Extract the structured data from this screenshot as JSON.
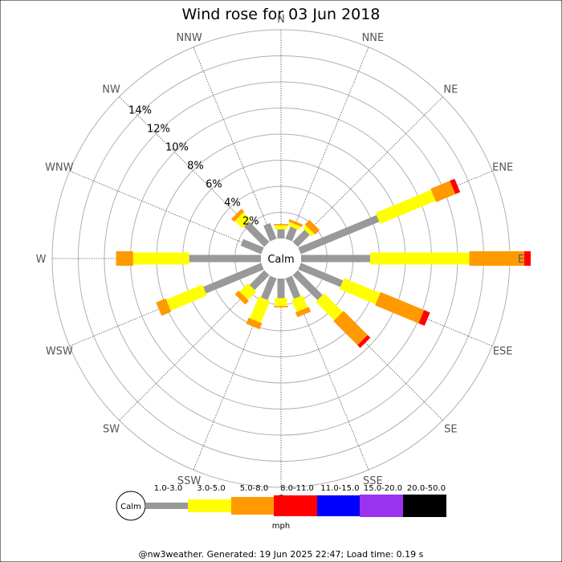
{
  "chart_data": {
    "type": "wind-rose",
    "title": "Wind rose for 03 Jun 2018",
    "directions": [
      "N",
      "NNE",
      "NE",
      "ENE",
      "E",
      "ESE",
      "SE",
      "SSE",
      "S",
      "SSW",
      "SW",
      "WSW",
      "W",
      "WNW",
      "NW",
      "NNW"
    ],
    "ring_values": [
      2,
      4,
      6,
      8,
      10,
      12,
      14
    ],
    "ring_label_suffix": "%",
    "rmax": 16,
    "calm_label": "Calm",
    "speed_bins": [
      {
        "label": "1.0-3.0",
        "color": "#999999"
      },
      {
        "label": "3.0-5.0",
        "color": "#ffff00"
      },
      {
        "label": "5.0-8.0",
        "color": "#ff9900"
      },
      {
        "label": "8.0-11.0",
        "color": "#ff0000"
      },
      {
        "label": "11.0-15.0",
        "color": "#0000ff"
      },
      {
        "label": "15.0-20.0",
        "color": "#9933ee"
      },
      {
        "label": "20.0-50.0",
        "color": "#000000"
      }
    ],
    "units": "mph",
    "series": [
      {
        "direction": "N",
        "values": [
          0.7,
          0.3,
          0.1,
          0,
          0,
          0,
          0
        ]
      },
      {
        "direction": "NNE",
        "values": [
          1.0,
          0.3,
          0.2,
          0,
          0,
          0,
          0
        ]
      },
      {
        "direction": "NE",
        "values": [
          1.3,
          0.3,
          0.5,
          0,
          0,
          0,
          0
        ]
      },
      {
        "direction": "ENE",
        "values": [
          6.5,
          4.6,
          1.6,
          0.4,
          0,
          0,
          0
        ]
      },
      {
        "direction": "E",
        "values": [
          5.3,
          7.6,
          4.2,
          0.5,
          0,
          0,
          0
        ]
      },
      {
        "direction": "ESE",
        "values": [
          3.5,
          3.0,
          3.6,
          0.5,
          0,
          0,
          0
        ]
      },
      {
        "direction": "SE",
        "values": [
          2.7,
          2.0,
          2.6,
          0.3,
          0,
          0,
          0
        ]
      },
      {
        "direction": "SSE",
        "values": [
          1.7,
          1.0,
          0.4,
          0,
          0,
          0,
          0
        ]
      },
      {
        "direction": "S",
        "values": [
          1.5,
          0.6,
          0.1,
          0,
          0,
          0,
          0
        ]
      },
      {
        "direction": "SSW",
        "values": [
          1.8,
          1.8,
          0.5,
          0,
          0,
          0,
          0
        ]
      },
      {
        "direction": "SW",
        "values": [
          1.6,
          0.9,
          0.4,
          0,
          0,
          0,
          0
        ]
      },
      {
        "direction": "WSW",
        "values": [
          4.8,
          3.0,
          0.8,
          0,
          0,
          0,
          0
        ]
      },
      {
        "direction": "W",
        "values": [
          5.5,
          4.3,
          1.3,
          0,
          0,
          0,
          0
        ]
      },
      {
        "direction": "WNW",
        "values": [
          1.7,
          0,
          0,
          0,
          0,
          0,
          0
        ]
      },
      {
        "direction": "NW",
        "values": [
          2.2,
          0.8,
          0.3,
          0,
          0,
          0,
          0
        ]
      },
      {
        "direction": "NNW",
        "values": [
          1.3,
          0,
          0,
          0,
          0,
          0,
          0
        ]
      }
    ]
  },
  "footer": "@nw3weather. Generated: 19 Jun 2025 22:47; Load time: 0.19 s"
}
